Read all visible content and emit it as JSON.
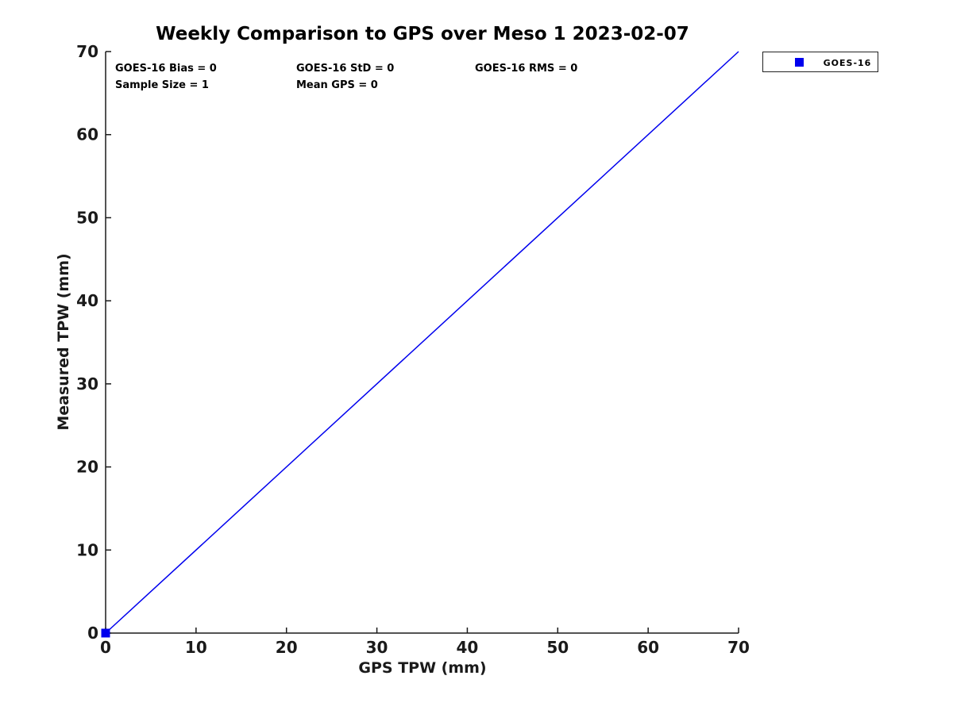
{
  "figure": {
    "background": "#ffffff"
  },
  "chart_data": {
    "type": "scatter",
    "title": "Weekly Comparison to GPS over Meso 1 2023-02-07",
    "xlabel": "GPS TPW (mm)",
    "ylabel": "Measured TPW (mm)",
    "xlim": [
      0,
      70
    ],
    "ylim": [
      0,
      70
    ],
    "xticks": [
      0,
      10,
      20,
      30,
      40,
      50,
      60,
      70
    ],
    "yticks": [
      0,
      10,
      20,
      30,
      40,
      50,
      60,
      70
    ],
    "grid": false,
    "axis_color": "#1a1a1a",
    "accent_color": "#0000ee",
    "series": [
      {
        "name": "GOES-16",
        "marker": "square",
        "color": "#0000ee",
        "points": [
          [
            0,
            0
          ]
        ]
      }
    ],
    "identity_line": {
      "from": [
        0,
        0
      ],
      "to": [
        70,
        70
      ],
      "color": "#0000ee"
    },
    "legend": {
      "position": "outside-top-right",
      "entries": [
        {
          "label": "GOES-16",
          "marker": "square",
          "color": "#0000ee"
        }
      ]
    },
    "stats_annotations": [
      "GOES-16 Bias = 0",
      "GOES-16 StD = 0",
      "GOES-16 RMS = 0",
      "Sample Size = 1",
      "Mean GPS = 0"
    ]
  }
}
